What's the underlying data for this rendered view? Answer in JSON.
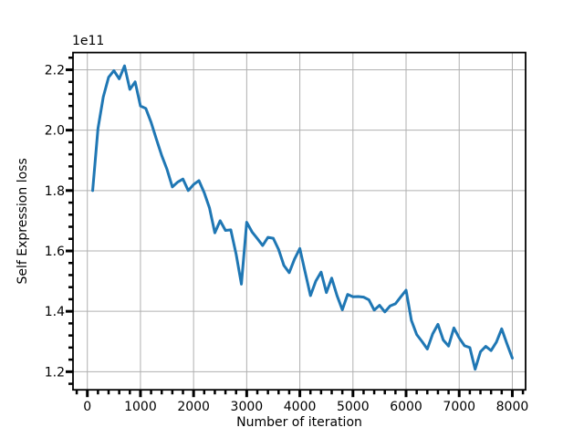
{
  "figure": {
    "background": "#ffffff"
  },
  "chart_data": {
    "type": "line",
    "title": "",
    "offset_text": "1e11",
    "xlabel": "Number of iteration",
    "ylabel": "Self Expression loss",
    "grid": true,
    "grid_color": "#b0b0b0",
    "line_color": "#1f77b4",
    "line_width": 3,
    "legend_position": "none",
    "xlim": [
      -270,
      8250
    ],
    "ylim": [
      1.14,
      2.257
    ],
    "x_ticks": [
      0,
      1000,
      2000,
      3000,
      4000,
      5000,
      6000,
      7000,
      8000
    ],
    "x_tick_labels": [
      "0",
      "1000",
      "2000",
      "3000",
      "4000",
      "5000",
      "6000",
      "7000",
      "8000"
    ],
    "y_ticks": [
      1.2,
      1.4,
      1.6,
      1.8,
      2.0,
      2.2
    ],
    "y_tick_labels": [
      "1.2",
      "1.4",
      "1.6",
      "1.8",
      "2.0",
      "2.2"
    ],
    "x_minor_step": 200,
    "y_minor_step": 0.04,
    "x": [
      100,
      200,
      300,
      400,
      500,
      600,
      700,
      800,
      900,
      1000,
      1100,
      1200,
      1300,
      1400,
      1500,
      1600,
      1700,
      1800,
      1900,
      2000,
      2100,
      2200,
      2300,
      2400,
      2500,
      2600,
      2700,
      2800,
      2900,
      3000,
      3100,
      3200,
      3300,
      3400,
      3500,
      3600,
      3700,
      3800,
      3900,
      4000,
      4100,
      4200,
      4300,
      4400,
      4500,
      4600,
      4700,
      4800,
      4900,
      5000,
      5100,
      5200,
      5300,
      5400,
      5500,
      5600,
      5700,
      5800,
      5900,
      6000,
      6100,
      6200,
      6300,
      6400,
      6500,
      6600,
      6700,
      6800,
      6900,
      7000,
      7100,
      7200,
      7300,
      7400,
      7500,
      7600,
      7700,
      7800,
      7900,
      8000
    ],
    "values": [
      1.8,
      2.005,
      2.11,
      2.175,
      2.197,
      2.17,
      2.213,
      2.135,
      2.16,
      2.08,
      2.072,
      2.026,
      1.97,
      1.916,
      1.87,
      1.812,
      1.828,
      1.838,
      1.8,
      1.82,
      1.833,
      1.793,
      1.742,
      1.66,
      1.7,
      1.668,
      1.67,
      1.59,
      1.49,
      1.695,
      1.663,
      1.641,
      1.618,
      1.645,
      1.642,
      1.605,
      1.552,
      1.528,
      1.573,
      1.608,
      1.53,
      1.452,
      1.5,
      1.53,
      1.462,
      1.51,
      1.452,
      1.405,
      1.456,
      1.448,
      1.449,
      1.447,
      1.438,
      1.404,
      1.42,
      1.398,
      1.418,
      1.425,
      1.448,
      1.47,
      1.37,
      1.323,
      1.3,
      1.275,
      1.325,
      1.357,
      1.305,
      1.285,
      1.345,
      1.312,
      1.286,
      1.28,
      1.208,
      1.266,
      1.284,
      1.27,
      1.298,
      1.342,
      1.292,
      1.245
    ]
  }
}
